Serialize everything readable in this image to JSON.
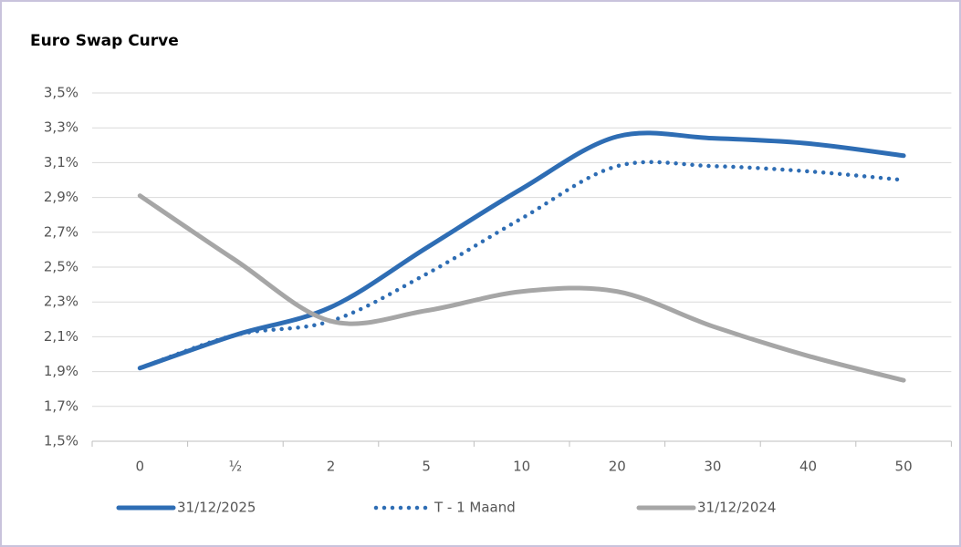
{
  "chart_data": {
    "type": "line",
    "title": "Euro Swap Curve",
    "categories": [
      "0",
      "½",
      "2",
      "5",
      "10",
      "20",
      "30",
      "40",
      "50"
    ],
    "series": [
      {
        "name": "31/12/2025",
        "color": "#2e6db4",
        "style": "solid",
        "values": [
          1.92,
          2.11,
          2.27,
          2.61,
          2.95,
          3.25,
          3.24,
          3.21,
          3.14
        ]
      },
      {
        "name": "T - 1 Maand",
        "color": "#2e6db4",
        "style": "dotted",
        "values": [
          1.92,
          2.11,
          2.19,
          2.46,
          2.78,
          3.08,
          3.08,
          3.05,
          3.0
        ]
      },
      {
        "name": "31/12/2024",
        "color": "#a6a6a6",
        "style": "solid",
        "values": [
          2.91,
          2.54,
          2.19,
          2.25,
          2.36,
          2.36,
          2.16,
          1.99,
          1.85
        ]
      }
    ],
    "ylim": [
      1.5,
      3.5
    ],
    "yticks": [
      {
        "value": 1.5,
        "label": "1,5%"
      },
      {
        "value": 1.7,
        "label": "1,7%"
      },
      {
        "value": 1.9,
        "label": "1,9%"
      },
      {
        "value": 2.1,
        "label": "2,1%"
      },
      {
        "value": 2.3,
        "label": "2,3%"
      },
      {
        "value": 2.5,
        "label": "2,5%"
      },
      {
        "value": 2.7,
        "label": "2,7%"
      },
      {
        "value": 2.9,
        "label": "2,9%"
      },
      {
        "value": 3.1,
        "label": "3,1%"
      },
      {
        "value": 3.3,
        "label": "3,3%"
      },
      {
        "value": 3.5,
        "label": "3,5%"
      }
    ],
    "grid": true,
    "legend": "bottom",
    "smooth": true
  }
}
